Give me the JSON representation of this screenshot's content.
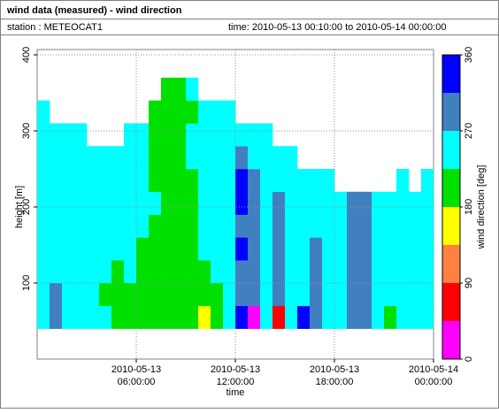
{
  "header": {
    "title": "wind data (measured) - wind direction",
    "station": "station : METEOCAT1",
    "time": "time: 2010-05-13 00:10:00 to 2010-05-14 00:00:00"
  },
  "chart_data": {
    "type": "heatmap",
    "xlabel": "time",
    "ylabel": "height [m]",
    "colorbar_label": "wind direction [deg]",
    "xlim": [
      0,
      24
    ],
    "ylim": [
      0,
      400
    ],
    "xticks": [
      {
        "value": 6,
        "label": "2010-05-13 06:00:00"
      },
      {
        "value": 12,
        "label": "2010-05-13 12:00:00"
      },
      {
        "value": 18,
        "label": "2010-05-13 18:00:00"
      },
      {
        "value": 24,
        "label": "2010-05-14 00:00:00"
      }
    ],
    "yticks": [
      100,
      200,
      300,
      400
    ],
    "grid": true,
    "colorscale": {
      "bounds": [
        0,
        45,
        90,
        135,
        180,
        225,
        270,
        315,
        360
      ],
      "colors": [
        "#ff00ff",
        "#ff0000",
        "#ff8040",
        "#ffff00",
        "#00e000",
        "#00ffff",
        "#4080c0",
        "#0000ff"
      ]
    },
    "cticks": [
      0,
      90,
      180,
      270,
      360
    ],
    "x": [
      0,
      0.75,
      1.5,
      2.25,
      3,
      3.75,
      4.5,
      5.25,
      6,
      6.75,
      7.5,
      8.25,
      9,
      9.75,
      10.5,
      11.25,
      12,
      12.75,
      13.5,
      14.25,
      15,
      15.75,
      16.5,
      17.25,
      18,
      18.75,
      19.5,
      20.25,
      21,
      21.75,
      22.5,
      23.25
    ],
    "y": [
      40,
      70,
      100,
      130,
      160,
      190,
      220,
      250,
      280,
      310,
      340
    ],
    "values": [
      [
        250,
        290,
        250,
        250,
        250,
        250,
        200,
        200,
        200,
        200,
        200,
        200,
        200,
        160,
        200,
        250,
        330,
        20,
        250,
        70,
        250,
        330,
        290,
        250,
        250,
        290,
        290,
        250,
        200,
        250,
        250,
        250
      ],
      [
        250,
        290,
        250,
        250,
        250,
        200,
        200,
        200,
        200,
        200,
        200,
        200,
        200,
        200,
        200,
        250,
        290,
        290,
        250,
        290,
        250,
        250,
        290,
        250,
        250,
        290,
        290,
        250,
        250,
        250,
        250,
        250
      ],
      [
        250,
        250,
        250,
        250,
        250,
        250,
        200,
        250,
        200,
        200,
        200,
        200,
        200,
        200,
        250,
        250,
        290,
        290,
        250,
        290,
        250,
        250,
        290,
        250,
        250,
        290,
        290,
        250,
        250,
        250,
        250,
        250
      ],
      [
        250,
        250,
        250,
        250,
        250,
        250,
        250,
        250,
        200,
        200,
        200,
        200,
        200,
        250,
        250,
        250,
        330,
        290,
        250,
        290,
        250,
        250,
        290,
        250,
        250,
        290,
        290,
        250,
        250,
        250,
        250,
        250
      ],
      [
        250,
        250,
        250,
        250,
        250,
        250,
        250,
        250,
        250,
        200,
        200,
        200,
        200,
        250,
        250,
        250,
        290,
        290,
        250,
        290,
        250,
        250,
        250,
        250,
        250,
        290,
        290,
        250,
        250,
        250,
        250,
        250
      ],
      [
        250,
        250,
        250,
        250,
        250,
        250,
        250,
        250,
        250,
        250,
        200,
        200,
        200,
        250,
        250,
        250,
        330,
        290,
        250,
        290,
        250,
        250,
        250,
        250,
        250,
        290,
        290,
        250,
        250,
        250,
        250,
        250
      ],
      [
        250,
        250,
        250,
        250,
        250,
        250,
        250,
        250,
        250,
        200,
        200,
        200,
        200,
        250,
        250,
        250,
        330,
        290,
        250,
        250,
        250,
        250,
        250,
        250,
        null,
        null,
        null,
        null,
        null,
        250,
        null,
        250
      ],
      [
        250,
        250,
        250,
        250,
        250,
        250,
        250,
        250,
        250,
        200,
        200,
        200,
        250,
        250,
        250,
        250,
        290,
        250,
        250,
        250,
        250,
        null,
        null,
        null,
        null,
        null,
        null,
        null,
        null,
        null,
        null,
        null
      ],
      [
        250,
        250,
        250,
        250,
        null,
        null,
        null,
        250,
        250,
        200,
        200,
        200,
        250,
        250,
        250,
        250,
        250,
        250,
        250,
        null,
        null,
        null,
        null,
        null,
        null,
        null,
        null,
        null,
        null,
        null,
        null,
        null
      ],
      [
        250,
        null,
        null,
        null,
        null,
        null,
        null,
        null,
        null,
        200,
        200,
        200,
        200,
        250,
        250,
        250,
        null,
        null,
        null,
        null,
        null,
        null,
        null,
        null,
        null,
        null,
        null,
        null,
        null,
        null,
        null,
        null
      ],
      [
        null,
        null,
        null,
        null,
        null,
        null,
        null,
        null,
        null,
        null,
        200,
        200,
        250,
        null,
        null,
        null,
        null,
        null,
        null,
        null,
        null,
        null,
        null,
        null,
        null,
        null,
        null,
        null,
        null,
        null,
        null,
        null
      ]
    ]
  }
}
